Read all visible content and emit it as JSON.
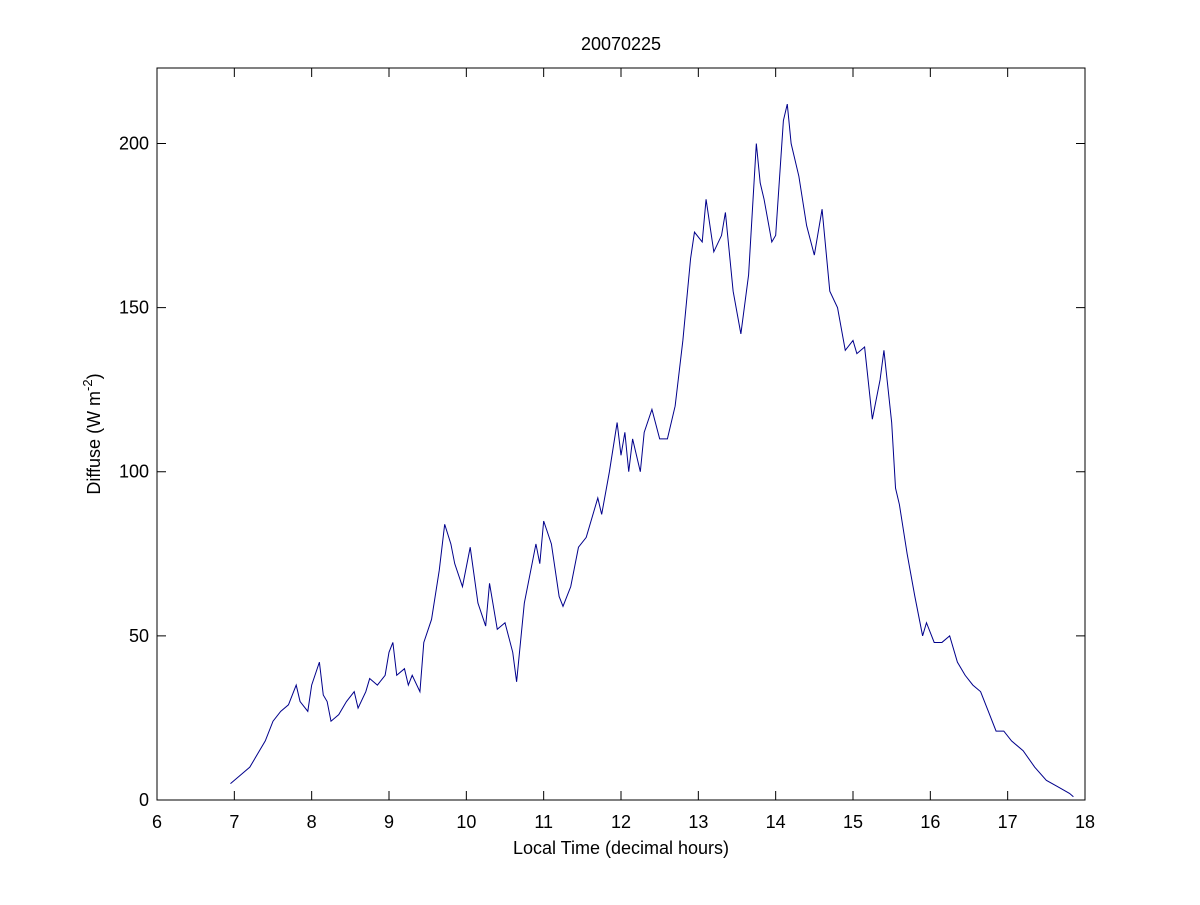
{
  "chart_data": {
    "type": "line",
    "title": "20070225",
    "xlabel": "Local Time (decimal hours)",
    "ylabel": "Diffuse (W m",
    "ylabel_sup": "-2",
    "ylabel_end": ")",
    "color": "#00008b",
    "x": [
      6.95,
      7.1,
      7.2,
      7.3,
      7.4,
      7.5,
      7.6,
      7.7,
      7.8,
      7.85,
      7.95,
      8.0,
      8.1,
      8.15,
      8.2,
      8.25,
      8.35,
      8.45,
      8.55,
      8.6,
      8.7,
      8.75,
      8.85,
      8.95,
      9.0,
      9.05,
      9.1,
      9.2,
      9.25,
      9.3,
      9.4,
      9.45,
      9.55,
      9.65,
      9.72,
      9.8,
      9.85,
      9.95,
      10.05,
      10.15,
      10.25,
      10.3,
      10.4,
      10.5,
      10.6,
      10.65,
      10.75,
      10.85,
      10.9,
      10.95,
      11.0,
      11.1,
      11.2,
      11.25,
      11.35,
      11.45,
      11.55,
      11.65,
      11.7,
      11.75,
      11.85,
      11.95,
      12.0,
      12.05,
      12.1,
      12.15,
      12.25,
      12.3,
      12.4,
      12.5,
      12.6,
      12.7,
      12.8,
      12.9,
      12.95,
      13.05,
      13.1,
      13.2,
      13.3,
      13.35,
      13.45,
      13.55,
      13.65,
      13.75,
      13.8,
      13.85,
      13.95,
      14.0,
      14.1,
      14.15,
      14.2,
      14.3,
      14.4,
      14.5,
      14.6,
      14.7,
      14.8,
      14.9,
      15.0,
      15.05,
      15.15,
      15.25,
      15.35,
      15.4,
      15.5,
      15.55,
      15.6,
      15.7,
      15.8,
      15.9,
      15.95,
      16.05,
      16.15,
      16.25,
      16.35,
      16.45,
      16.55,
      16.65,
      16.75,
      16.85,
      16.95,
      17.05,
      17.2,
      17.35,
      17.5,
      17.65,
      17.8,
      17.85
    ],
    "values": [
      5,
      8,
      10,
      14,
      18,
      24,
      27,
      29,
      35,
      30,
      27,
      35,
      42,
      32,
      30,
      24,
      26,
      30,
      33,
      28,
      33,
      37,
      35,
      38,
      45,
      48,
      38,
      40,
      35,
      38,
      33,
      48,
      55,
      70,
      84,
      78,
      72,
      65,
      77,
      60,
      53,
      66,
      52,
      54,
      45,
      36,
      60,
      72,
      78,
      72,
      85,
      78,
      62,
      59,
      65,
      77,
      80,
      88,
      92,
      87,
      100,
      115,
      105,
      112,
      100,
      110,
      100,
      112,
      119,
      110,
      110,
      120,
      140,
      165,
      173,
      170,
      183,
      167,
      172,
      179,
      155,
      142,
      160,
      200,
      188,
      183,
      170,
      172,
      207,
      212,
      200,
      190,
      175,
      166,
      180,
      155,
      150,
      137,
      140,
      136,
      138,
      116,
      128,
      137,
      115,
      95,
      90,
      75,
      62,
      50,
      54,
      48,
      48,
      50,
      42,
      38,
      35,
      33,
      27,
      21,
      21,
      18,
      15,
      10,
      6,
      4,
      2,
      1
    ],
    "xlim": [
      6,
      18
    ],
    "xticks": [
      6,
      7,
      8,
      9,
      10,
      11,
      12,
      13,
      14,
      15,
      16,
      17,
      18
    ],
    "ylim": [
      0,
      223
    ],
    "yticks": [
      0,
      50,
      100,
      150,
      200
    ]
  }
}
